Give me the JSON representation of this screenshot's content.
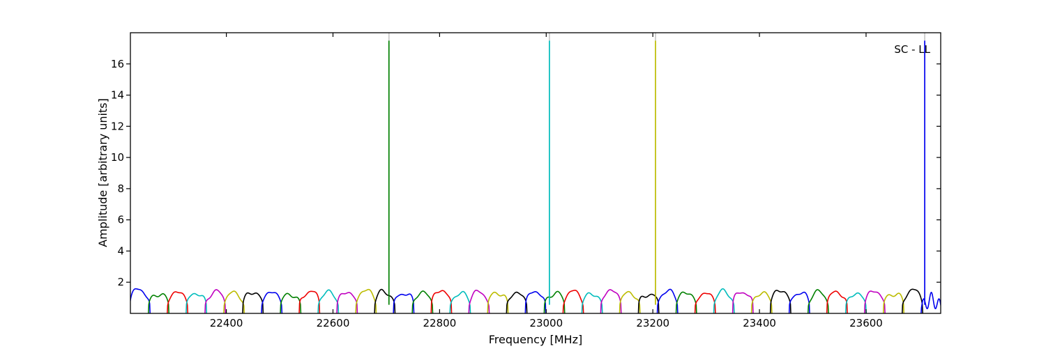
{
  "figure": {
    "background": "#ffffff"
  },
  "chart_data": {
    "type": "line",
    "title": "",
    "corner_label": "SC - LL",
    "xlabel": "Frequency [MHz]",
    "ylabel": "Amplitude [arbitrary units]",
    "xlim": [
      22220,
      23740
    ],
    "ylim": [
      0,
      18
    ],
    "xticks": [
      22400,
      22600,
      22800,
      23000,
      23200,
      23400,
      23600
    ],
    "yticks": [
      2,
      4,
      6,
      8,
      10,
      12,
      14,
      16
    ],
    "grid": false,
    "legend_position": "none",
    "axes_color": "#000000",
    "palette": {
      "blue": "#0000ee",
      "green": "#008000",
      "red": "#ee0000",
      "cyan": "#00bcbc",
      "magenta": "#c000c0",
      "yellow": "#bcbc00",
      "black": "#000000",
      "spike_cap": "#c8c8c8"
    },
    "window_halfwidth_mhz": 19.2,
    "windows": [
      {
        "f": 22237.7,
        "a": 1.52,
        "color": "blue"
      },
      {
        "f": 22273.0,
        "a": 1.28,
        "color": "green"
      },
      {
        "f": 22308.4,
        "a": 1.34,
        "color": "red"
      },
      {
        "f": 22343.7,
        "a": 1.3,
        "color": "cyan"
      },
      {
        "f": 22379.1,
        "a": 1.36,
        "color": "magenta"
      },
      {
        "f": 22414.4,
        "a": 1.27,
        "color": "yellow"
      },
      {
        "f": 22449.8,
        "a": 1.38,
        "color": "black"
      },
      {
        "f": 22485.1,
        "a": 1.33,
        "color": "blue"
      },
      {
        "f": 22520.5,
        "a": 1.24,
        "color": "green"
      },
      {
        "f": 22555.8,
        "a": 1.42,
        "color": "red"
      },
      {
        "f": 22591.2,
        "a": 1.3,
        "color": "cyan"
      },
      {
        "f": 22626.5,
        "a": 1.36,
        "color": "magenta"
      },
      {
        "f": 22661.9,
        "a": 1.44,
        "color": "yellow"
      },
      {
        "f": 22697.2,
        "a": 1.38,
        "color": "black"
      },
      {
        "f": 22732.6,
        "a": 1.34,
        "color": "blue"
      },
      {
        "f": 22767.9,
        "a": 1.29,
        "color": "green"
      },
      {
        "f": 22803.3,
        "a": 1.47,
        "color": "red"
      },
      {
        "f": 22838.6,
        "a": 1.26,
        "color": "cyan"
      },
      {
        "f": 22874.0,
        "a": 1.32,
        "color": "magenta"
      },
      {
        "f": 22909.3,
        "a": 1.36,
        "color": "yellow"
      },
      {
        "f": 22944.7,
        "a": 1.28,
        "color": "black"
      },
      {
        "f": 22980.0,
        "a": 1.4,
        "color": "blue"
      },
      {
        "f": 23015.4,
        "a": 1.31,
        "color": "green"
      },
      {
        "f": 23050.7,
        "a": 1.35,
        "color": "red"
      },
      {
        "f": 23086.1,
        "a": 1.26,
        "color": "cyan"
      },
      {
        "f": 23121.4,
        "a": 1.44,
        "color": "magenta"
      },
      {
        "f": 23156.8,
        "a": 1.3,
        "color": "yellow"
      },
      {
        "f": 23192.1,
        "a": 1.28,
        "color": "black"
      },
      {
        "f": 23227.5,
        "a": 1.38,
        "color": "blue"
      },
      {
        "f": 23262.8,
        "a": 1.33,
        "color": "green"
      },
      {
        "f": 23298.2,
        "a": 1.27,
        "color": "red"
      },
      {
        "f": 23333.5,
        "a": 1.35,
        "color": "cyan"
      },
      {
        "f": 23368.9,
        "a": 1.42,
        "color": "magenta"
      },
      {
        "f": 23404.2,
        "a": 1.29,
        "color": "yellow"
      },
      {
        "f": 23439.6,
        "a": 1.47,
        "color": "black"
      },
      {
        "f": 23474.9,
        "a": 1.33,
        "color": "blue"
      },
      {
        "f": 23510.3,
        "a": 1.3,
        "color": "green"
      },
      {
        "f": 23545.6,
        "a": 1.37,
        "color": "red"
      },
      {
        "f": 23581.0,
        "a": 1.25,
        "color": "cyan"
      },
      {
        "f": 23616.3,
        "a": 1.4,
        "color": "magenta"
      },
      {
        "f": 23651.7,
        "a": 1.32,
        "color": "yellow"
      },
      {
        "f": 23687.0,
        "a": 1.44,
        "color": "black"
      },
      {
        "f": 23722.4,
        "a": 1.35,
        "color": "blue",
        "ripple": true
      }
    ],
    "spikes": [
      {
        "f": 22705,
        "peak": 17.5,
        "color": "green"
      },
      {
        "f": 23006,
        "peak": 17.5,
        "color": "cyan"
      },
      {
        "f": 23205,
        "peak": 17.5,
        "color": "yellow"
      },
      {
        "f": 23710,
        "peak": 17.5,
        "color": "blue"
      }
    ]
  }
}
